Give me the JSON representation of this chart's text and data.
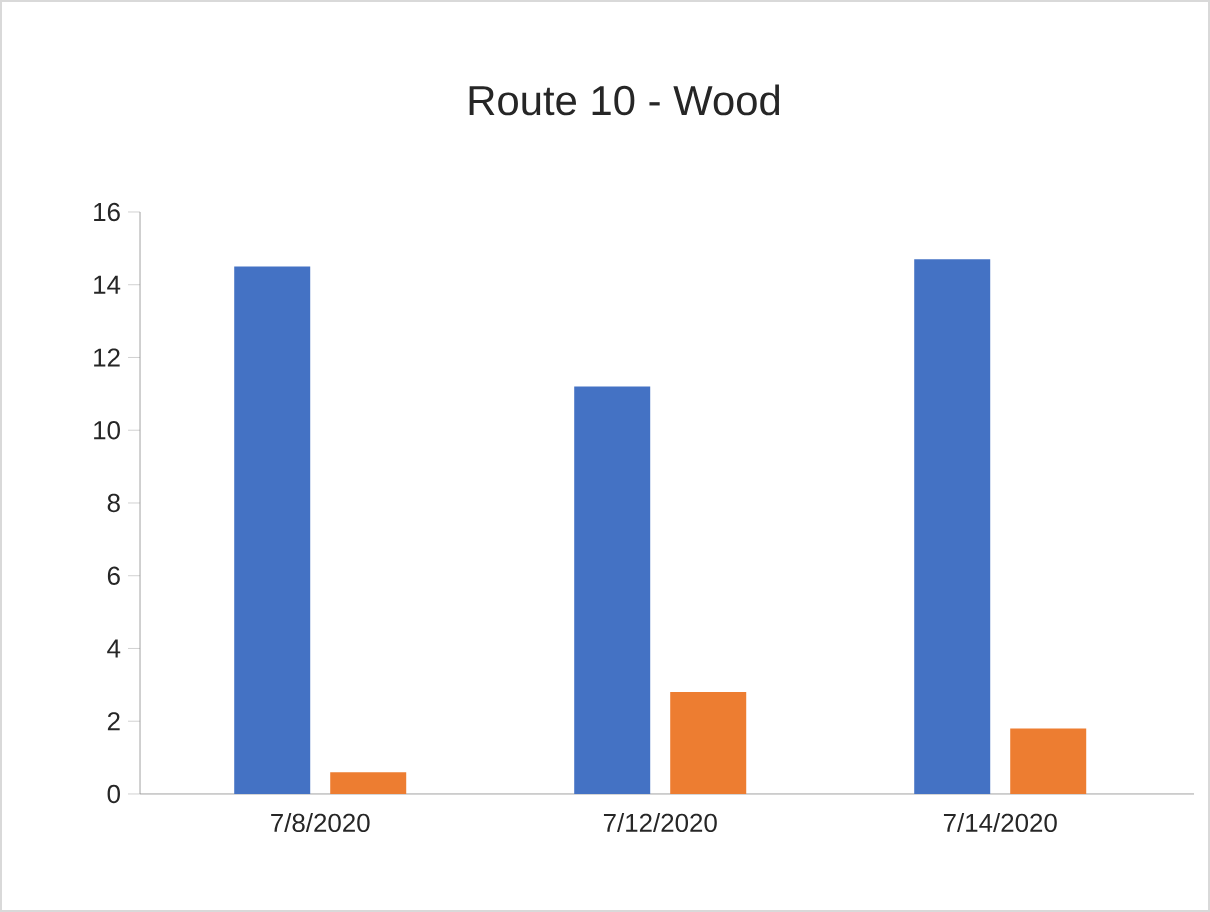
{
  "chart_data": {
    "type": "bar",
    "title": "Route 10 - Wood",
    "categories": [
      "7/8/2020",
      "7/12/2020",
      "7/14/2020"
    ],
    "series": [
      {
        "color": "#4472c4",
        "values": [
          14.5,
          11.2,
          14.7
        ]
      },
      {
        "color": "#ed7d31",
        "values": [
          0.6,
          2.8,
          1.8
        ]
      }
    ],
    "ylim": [
      0,
      16
    ],
    "yticks": [
      0,
      2,
      4,
      6,
      8,
      10,
      12,
      14,
      16
    ]
  }
}
